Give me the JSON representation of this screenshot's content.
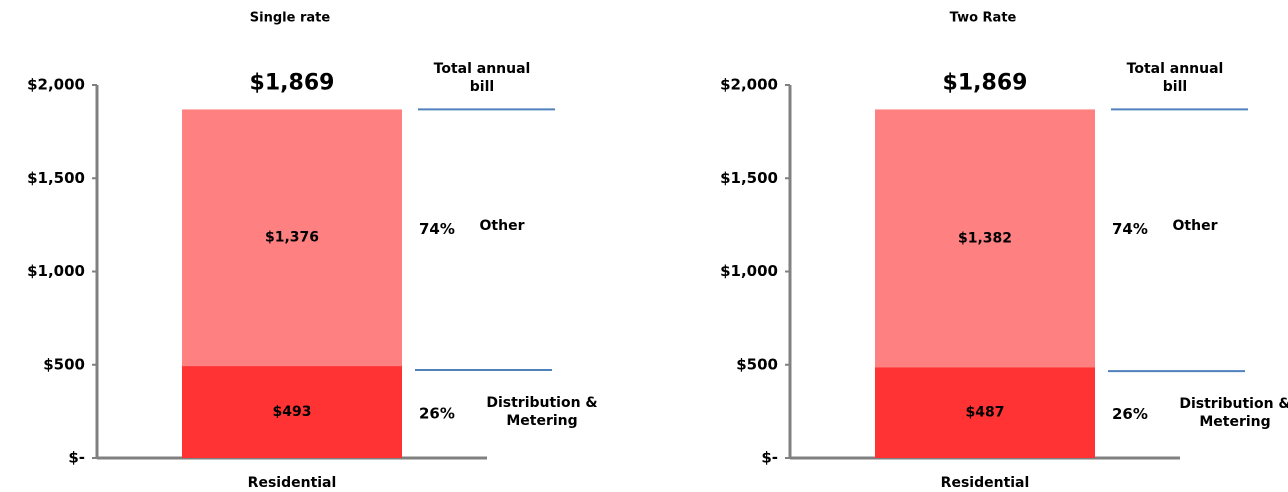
{
  "chart_data": [
    {
      "type": "stacked_bar",
      "title": "Single rate",
      "categories": [
        "Residential"
      ],
      "series": [
        {
          "name": "Distribution & Metering",
          "color": "#ff3333",
          "values": [
            493
          ],
          "value_labels": [
            "$493"
          ],
          "percent": 26,
          "percent_label": "26%"
        },
        {
          "name": "Other",
          "color": "#ff8080",
          "values": [
            1376
          ],
          "value_labels": [
            "$1,376"
          ],
          "percent": 74,
          "percent_label": "74%"
        }
      ],
      "totals": [
        1869
      ],
      "total_labels": [
        "$1,869"
      ],
      "total_annotation": "Total annual bill",
      "line_color": "#4f81bd",
      "ylim": [
        0,
        2000
      ],
      "yticks": [
        {
          "value": 0,
          "label": "$-"
        },
        {
          "value": 500,
          "label": "$500"
        },
        {
          "value": 1000,
          "label": "$1,000"
        },
        {
          "value": 1500,
          "label": "$1,500"
        },
        {
          "value": 2000,
          "label": "$2,000"
        }
      ]
    },
    {
      "type": "stacked_bar",
      "title": "Two Rate",
      "categories": [
        "Residential"
      ],
      "series": [
        {
          "name": "Distribution & Metering",
          "color": "#ff3333",
          "values": [
            487
          ],
          "value_labels": [
            "$487"
          ],
          "percent": 26,
          "percent_label": "26%"
        },
        {
          "name": "Other",
          "color": "#ff8080",
          "values": [
            1382
          ],
          "value_labels": [
            "$1,382"
          ],
          "percent": 74,
          "percent_label": "74%"
        }
      ],
      "totals": [
        1869
      ],
      "total_labels": [
        "$1,869"
      ],
      "total_annotation": "Total annual bill",
      "line_color": "#4f81bd",
      "ylim": [
        0,
        2000
      ],
      "yticks": [
        {
          "value": 0,
          "label": "$-"
        },
        {
          "value": 500,
          "label": "$500"
        },
        {
          "value": 1000,
          "label": "$1,000"
        },
        {
          "value": 1500,
          "label": "$1,500"
        },
        {
          "value": 2000,
          "label": "$2,000"
        }
      ]
    }
  ]
}
